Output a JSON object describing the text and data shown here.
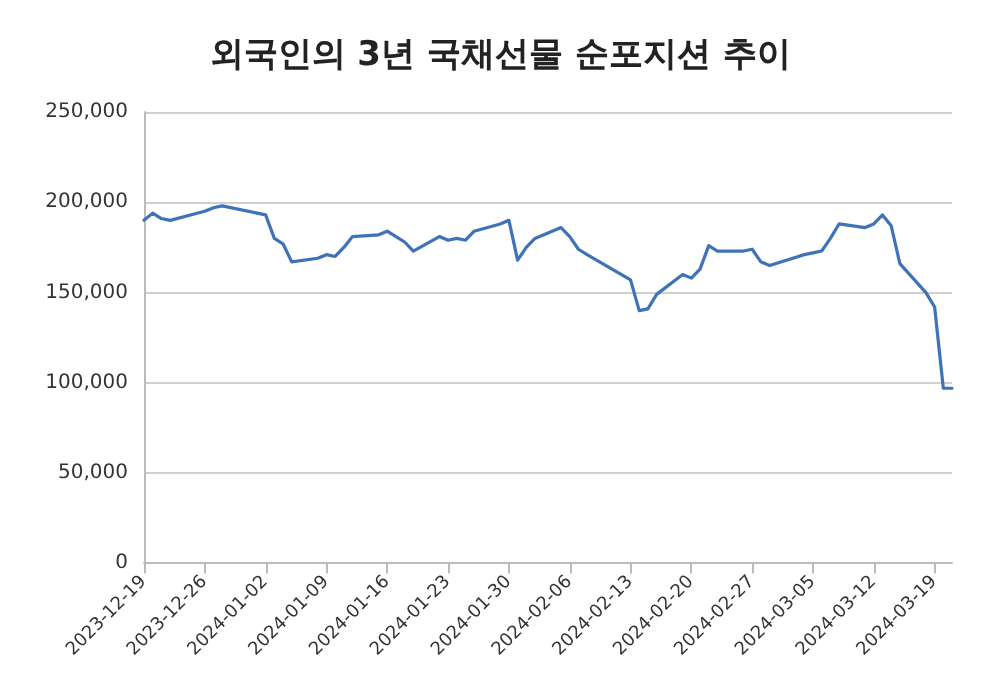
{
  "chart_data": {
    "type": "line",
    "title": "외국인의 3년 국채선물 순포지션 추이",
    "x": [
      "2023-12-19",
      "2023-12-20",
      "2023-12-21",
      "2023-12-22",
      "2023-12-26",
      "2023-12-27",
      "2023-12-28",
      "2024-01-02",
      "2024-01-03",
      "2024-01-04",
      "2024-01-05",
      "2024-01-08",
      "2024-01-09",
      "2024-01-10",
      "2024-01-11",
      "2024-01-12",
      "2024-01-15",
      "2024-01-16",
      "2024-01-17",
      "2024-01-18",
      "2024-01-19",
      "2024-01-22",
      "2024-01-23",
      "2024-01-24",
      "2024-01-25",
      "2024-01-26",
      "2024-01-29",
      "2024-01-30",
      "2024-01-31",
      "2024-02-01",
      "2024-02-02",
      "2024-02-05",
      "2024-02-06",
      "2024-02-07",
      "2024-02-08",
      "2024-02-13",
      "2024-02-14",
      "2024-02-15",
      "2024-02-16",
      "2024-02-19",
      "2024-02-20",
      "2024-02-21",
      "2024-02-22",
      "2024-02-23",
      "2024-02-26",
      "2024-02-27",
      "2024-02-28",
      "2024-02-29",
      "2024-03-04",
      "2024-03-05",
      "2024-03-06",
      "2024-03-07",
      "2024-03-08",
      "2024-03-11",
      "2024-03-12",
      "2024-03-13",
      "2024-03-14",
      "2024-03-15",
      "2024-03-18",
      "2024-03-19",
      "2024-03-20",
      "2024-03-21"
    ],
    "series": [
      {
        "color": "#3f72b8",
        "values": [
          190000,
          194000,
          191000,
          190000,
          195000,
          197000,
          198000,
          193000,
          180000,
          177000,
          167000,
          169000,
          171000,
          170000,
          175000,
          181000,
          182000,
          184000,
          181000,
          178000,
          173000,
          181000,
          179000,
          180000,
          179000,
          184000,
          188000,
          190000,
          168000,
          175000,
          180000,
          186000,
          181000,
          174000,
          171000,
          157000,
          140000,
          141000,
          149000,
          160000,
          158000,
          163000,
          176000,
          173000,
          173000,
          174000,
          167000,
          165000,
          171000,
          172000,
          173000,
          180000,
          188000,
          186000,
          188000,
          193000,
          187000,
          166000,
          150000,
          142000,
          97000,
          97000
        ]
      }
    ],
    "xlim": [
      "2023-12-19",
      "2024-03-21"
    ],
    "xticks": [
      "2023-12-19",
      "2023-12-26",
      "2024-01-02",
      "2024-01-09",
      "2024-01-16",
      "2024-01-23",
      "2024-01-30",
      "2024-02-06",
      "2024-02-13",
      "2024-02-20",
      "2024-02-27",
      "2024-03-05",
      "2024-03-12",
      "2024-03-19"
    ],
    "ylim": [
      0,
      250000
    ],
    "yticks": [
      0,
      {
        "value": 50000,
        "label": "50,000"
      },
      {
        "value": 100000,
        "label": "100,000"
      },
      {
        "value": 150000,
        "label": "150,000"
      },
      {
        "value": 200000,
        "label": "200,000"
      },
      {
        "value": 250000,
        "label": "250,000"
      }
    ],
    "grid": "y",
    "marker": "none",
    "line_style": "solid"
  }
}
